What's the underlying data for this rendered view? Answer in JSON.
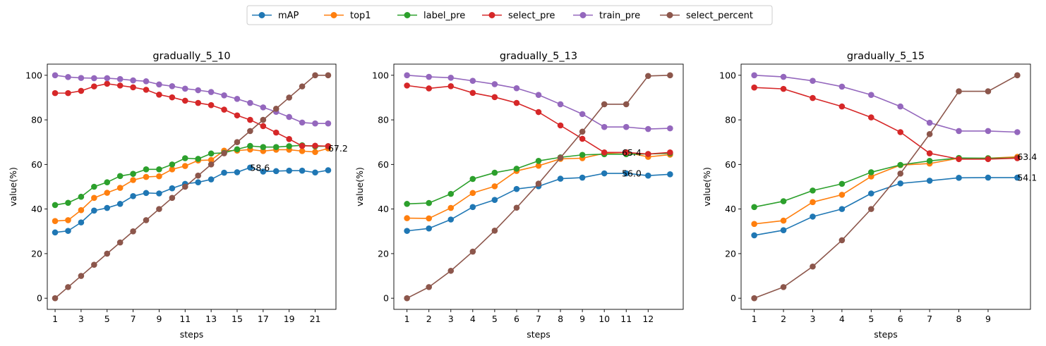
{
  "legend": {
    "placement": "top-center",
    "entries": [
      {
        "name": "mAP",
        "color": "#1f77b4"
      },
      {
        "name": "top1",
        "color": "#ff7f0e"
      },
      {
        "name": "label_pre",
        "color": "#2ca02c"
      },
      {
        "name": "select_pre",
        "color": "#d62728"
      },
      {
        "name": "train_pre",
        "color": "#9467bd"
      },
      {
        "name": "select_percent",
        "color": "#8c564b"
      }
    ]
  },
  "chart_data": [
    {
      "type": "line",
      "title": "gradually_5_10",
      "xlabel": "steps",
      "ylabel": "value(%)",
      "xlim": [
        0.4,
        22.6
      ],
      "ylim": [
        -5,
        105
      ],
      "x_ticks": [
        1,
        3,
        5,
        7,
        9,
        11,
        13,
        15,
        17,
        19,
        21
      ],
      "y_ticks": [
        0,
        20,
        40,
        60,
        80,
        100
      ],
      "grid": false,
      "x": [
        1,
        2,
        3,
        4,
        5,
        6,
        7,
        8,
        9,
        10,
        11,
        12,
        13,
        14,
        15,
        16,
        17,
        18,
        19,
        20,
        21,
        22
      ],
      "series": [
        {
          "name": "mAP",
          "values": [
            29.5,
            30.2,
            34.0,
            39.3,
            40.5,
            42.3,
            45.8,
            47.2,
            47.0,
            49.3,
            51.3,
            52.0,
            53.3,
            56.3,
            56.5,
            58.6,
            56.8,
            57.0,
            57.2,
            57.2,
            56.4,
            57.4
          ]
        },
        {
          "name": "top1",
          "values": [
            34.6,
            35.0,
            39.5,
            45.0,
            47.3,
            49.5,
            53.0,
            54.4,
            54.7,
            57.8,
            59.3,
            61.8,
            62.0,
            66.2,
            66.2,
            66.7,
            66.0,
            66.6,
            66.6,
            66.0,
            65.6,
            67.2
          ]
        },
        {
          "name": "label_pre",
          "values": [
            41.8,
            42.8,
            45.5,
            50.0,
            52.0,
            54.8,
            55.8,
            57.8,
            57.8,
            60.0,
            62.8,
            62.5,
            64.9,
            65.2,
            66.8,
            68.3,
            67.8,
            67.8,
            68.2,
            68.6,
            68.1,
            68.2
          ]
        },
        {
          "name": "select_pre",
          "values": [
            92.0,
            92.0,
            93.0,
            95.0,
            96.2,
            95.4,
            94.6,
            93.5,
            91.3,
            90.1,
            88.6,
            87.6,
            86.6,
            84.6,
            82.0,
            80.0,
            77.2,
            74.3,
            71.4,
            68.3,
            68.4,
            68.2
          ]
        },
        {
          "name": "train_pre",
          "values": [
            100.0,
            99.2,
            98.8,
            98.7,
            98.7,
            98.3,
            97.7,
            97.3,
            95.9,
            95.1,
            94.0,
            93.3,
            92.5,
            91.0,
            89.4,
            87.6,
            85.6,
            83.6,
            81.3,
            78.8,
            78.4,
            78.4
          ]
        },
        {
          "name": "select_percent",
          "values": [
            0,
            5,
            10,
            15,
            20,
            25,
            30,
            35,
            40,
            45,
            50,
            55,
            60,
            65,
            70,
            75,
            80,
            85,
            90,
            95,
            100,
            100
          ]
        }
      ],
      "annotations": [
        {
          "text": "58.6",
          "x": 16,
          "y": 58.6
        },
        {
          "text": "67.2",
          "x": 22,
          "y": 67.2
        }
      ]
    },
    {
      "type": "line",
      "title": "gradually_5_13",
      "xlabel": "steps",
      "ylabel": "value(%)",
      "xlim": [
        0.4,
        13.6
      ],
      "ylim": [
        -5,
        105
      ],
      "x_ticks": [
        1,
        2,
        3,
        4,
        5,
        6,
        7,
        8,
        9,
        10,
        11,
        12
      ],
      "y_ticks": [
        0,
        20,
        40,
        60,
        80,
        100
      ],
      "grid": false,
      "x": [
        1,
        2,
        3,
        4,
        5,
        6,
        7,
        8,
        9,
        10,
        11,
        12,
        13
      ],
      "series": [
        {
          "name": "mAP",
          "values": [
            30.2,
            31.3,
            35.3,
            40.9,
            44.1,
            49.0,
            50.2,
            53.6,
            54.1,
            56.0,
            56.0,
            55.0,
            55.6
          ]
        },
        {
          "name": "top1",
          "values": [
            35.9,
            35.8,
            40.5,
            47.2,
            50.2,
            57.1,
            59.4,
            62.5,
            62.8,
            65.0,
            65.4,
            63.4,
            64.4
          ]
        },
        {
          "name": "label_pre",
          "values": [
            42.3,
            42.7,
            46.8,
            53.5,
            56.3,
            58.1,
            61.6,
            63.2,
            64.3,
            64.6,
            64.6,
            64.7,
            65.0
          ]
        },
        {
          "name": "select_pre",
          "values": [
            95.4,
            94.1,
            95.1,
            92.1,
            90.2,
            87.6,
            83.5,
            77.5,
            71.5,
            65.4,
            65.4,
            64.7,
            65.4
          ]
        },
        {
          "name": "train_pre",
          "values": [
            100.0,
            99.3,
            98.9,
            97.5,
            96.0,
            94.2,
            91.2,
            87.0,
            82.6,
            76.8,
            76.8,
            75.9,
            76.2
          ]
        },
        {
          "name": "select_percent",
          "values": [
            0,
            5,
            12.3,
            20.9,
            30.3,
            40.6,
            51.4,
            63.0,
            74.7,
            87.0,
            87.0,
            99.7,
            100.0
          ]
        }
      ],
      "annotations": [
        {
          "text": "65.4",
          "x": 10.8,
          "y": 65.4
        },
        {
          "text": "56.0",
          "x": 10.8,
          "y": 56.0
        }
      ]
    },
    {
      "type": "line",
      "title": "gradually_5_15",
      "xlabel": "steps",
      "ylabel": "value(%)",
      "xlim": [
        0.55,
        10.45
      ],
      "ylim": [
        -5,
        105
      ],
      "x_ticks": [
        1,
        2,
        3,
        4,
        5,
        6,
        7,
        8,
        9
      ],
      "y_ticks": [
        0,
        20,
        40,
        60,
        80,
        100
      ],
      "grid": false,
      "x": [
        1,
        2,
        3,
        4,
        5,
        6,
        7,
        8,
        9,
        10
      ],
      "series": [
        {
          "name": "mAP",
          "values": [
            28.2,
            30.5,
            36.6,
            40.0,
            47.0,
            51.5,
            52.7,
            54.0,
            54.1,
            54.1
          ]
        },
        {
          "name": "top1",
          "values": [
            33.3,
            34.8,
            43.1,
            46.4,
            54.6,
            59.7,
            60.4,
            62.8,
            62.8,
            63.4
          ]
        },
        {
          "name": "label_pre",
          "values": [
            40.9,
            43.5,
            48.3,
            51.3,
            56.5,
            59.8,
            61.6,
            62.9,
            62.8,
            62.9
          ]
        },
        {
          "name": "select_pre",
          "values": [
            94.5,
            93.9,
            89.8,
            86.0,
            81.1,
            74.5,
            65.0,
            62.4,
            62.4,
            62.8
          ]
        },
        {
          "name": "train_pre",
          "values": [
            100.0,
            99.3,
            97.5,
            94.9,
            91.2,
            86.0,
            78.7,
            75.0,
            75.0,
            74.5
          ]
        },
        {
          "name": "select_percent",
          "values": [
            0,
            5,
            14.2,
            26.0,
            40.0,
            55.9,
            73.6,
            92.8,
            92.8,
            100.0
          ]
        }
      ],
      "annotations": [
        {
          "text": "63.4",
          "x": 10,
          "y": 63.4
        },
        {
          "text": "54.1",
          "x": 10,
          "y": 54.1
        }
      ]
    }
  ]
}
